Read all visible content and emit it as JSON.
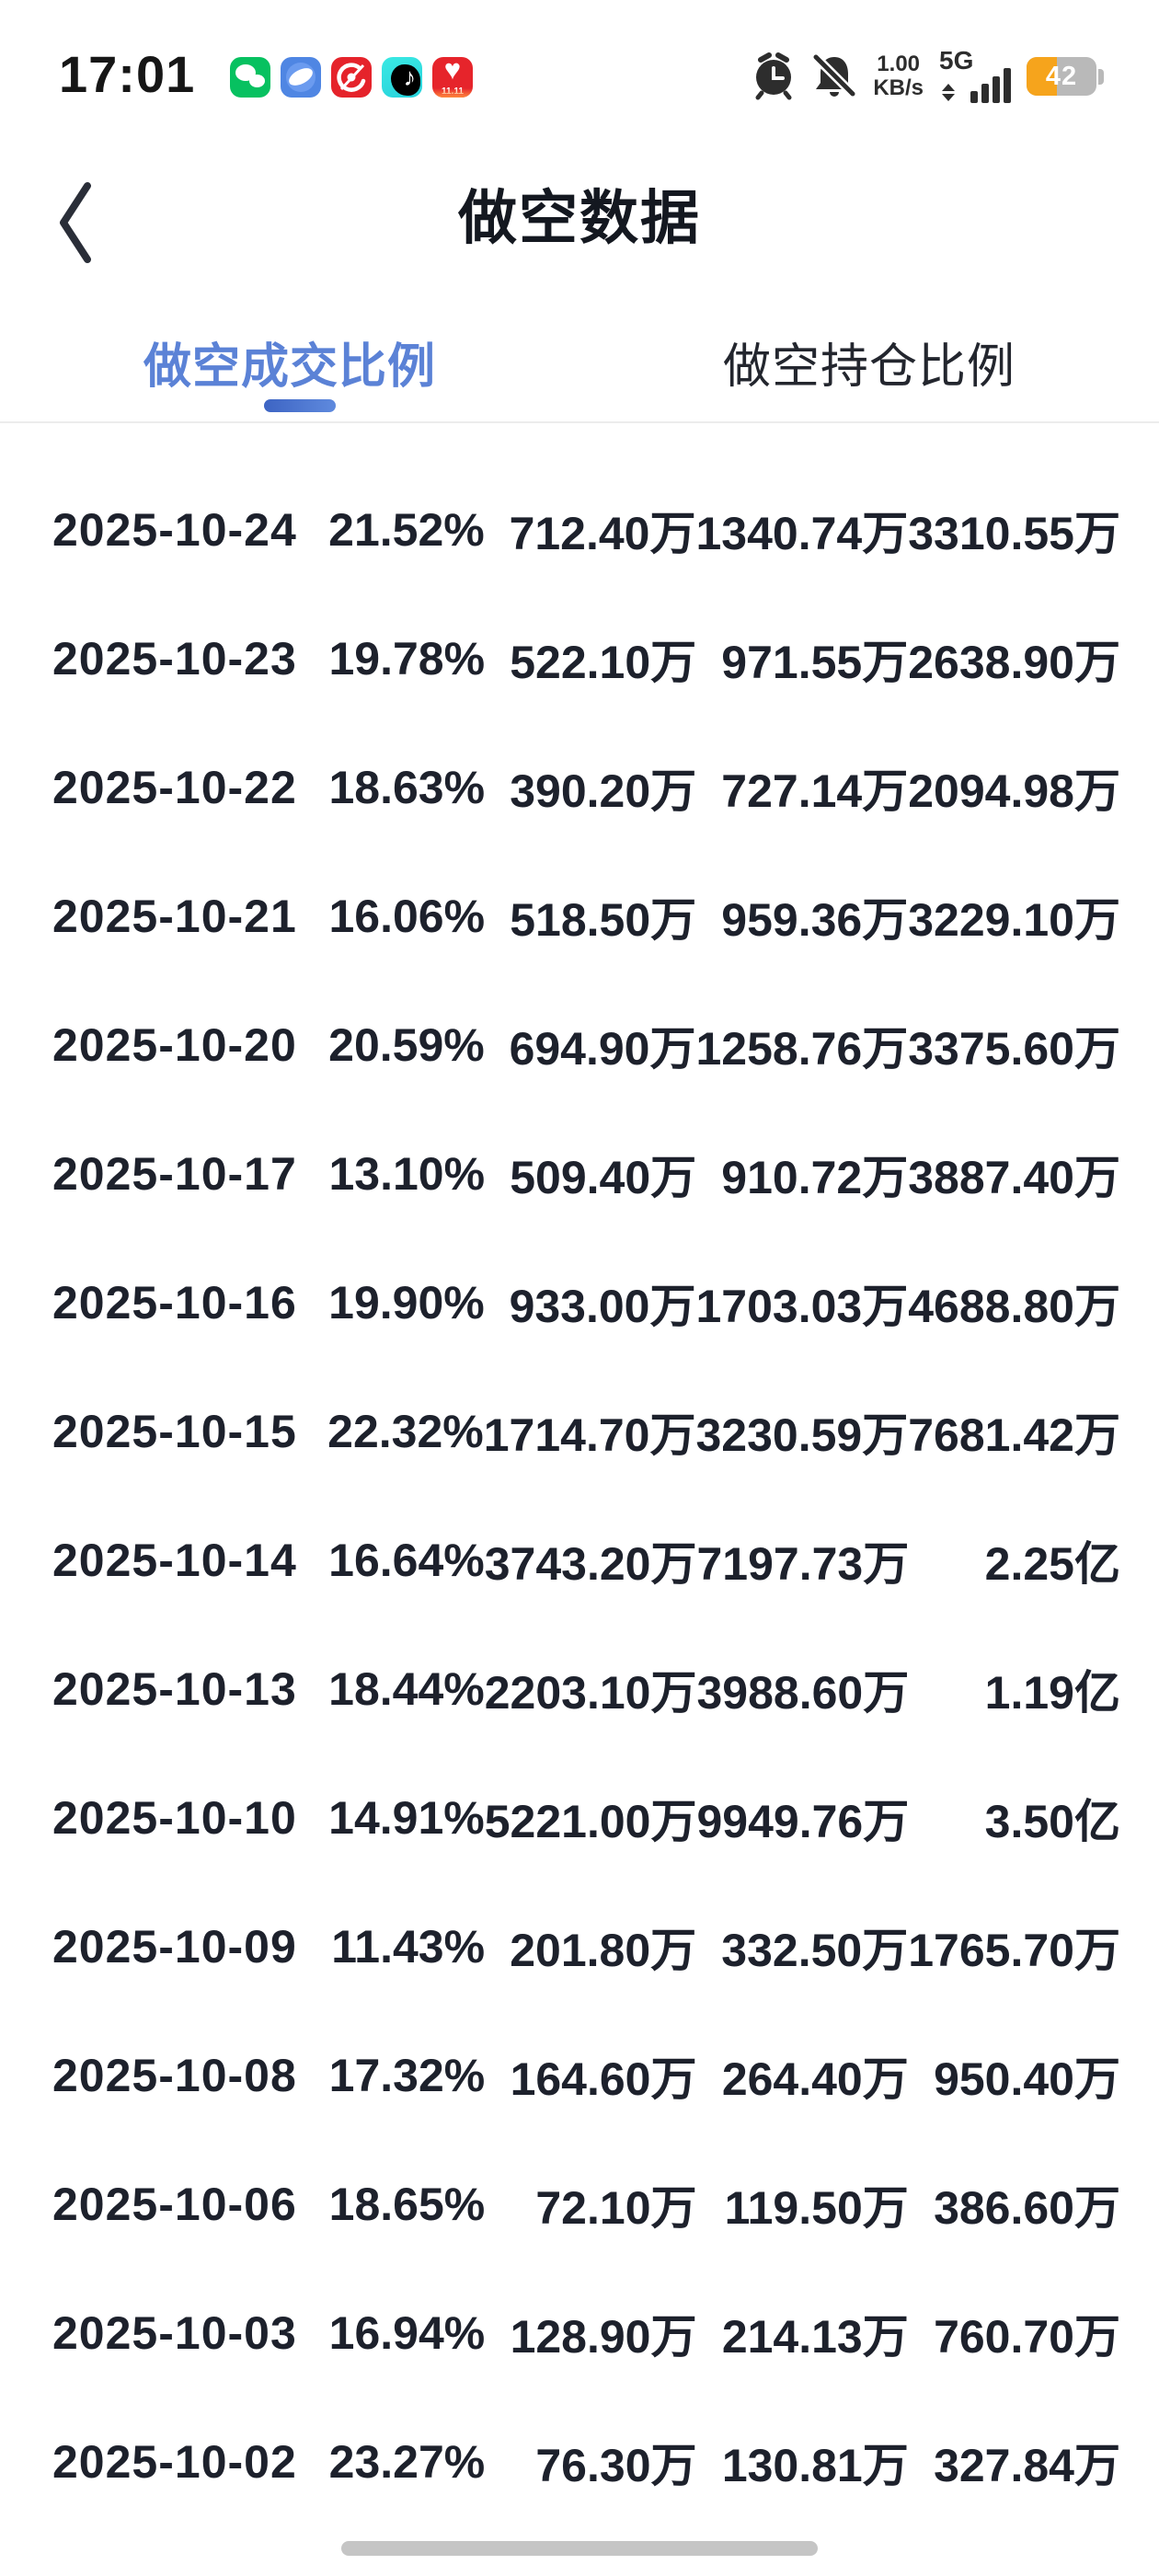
{
  "status_bar": {
    "time": "17:01",
    "network_speed_value": "1.00",
    "network_speed_unit": "KB/s",
    "network_type": "5G",
    "battery_level": "42",
    "app_icons": [
      "wechat",
      "quark-browser",
      "red-swirl-app",
      "douyin",
      "shopping-11-11"
    ],
    "shopping_icon_label": "11.11"
  },
  "icons": {
    "music_note": "♪",
    "heart": "♥"
  },
  "header": {
    "title": "做空数据"
  },
  "tabs": [
    {
      "label": "做空成交比例",
      "active": true
    },
    {
      "label": "做空持仓比例",
      "active": false
    }
  ],
  "colors": {
    "accent_blue": "#5b82d6",
    "tab_underline_gradient": [
      "#3d64c3",
      "#5f8ade"
    ],
    "battery_orange": "#f6a41c",
    "battery_gray": "#b9b9b9",
    "divider_gray": "#ececec",
    "text_dark": "#1d212c",
    "scroll_indicator_gray": "#c5c5c5"
  },
  "table": {
    "rows": [
      [
        "2025-10-24",
        "21.52%",
        "712.40万",
        "1340.74万",
        "3310.55万"
      ],
      [
        "2025-10-23",
        "19.78%",
        "522.10万",
        "971.55万",
        "2638.90万"
      ],
      [
        "2025-10-22",
        "18.63%",
        "390.20万",
        "727.14万",
        "2094.98万"
      ],
      [
        "2025-10-21",
        "16.06%",
        "518.50万",
        "959.36万",
        "3229.10万"
      ],
      [
        "2025-10-20",
        "20.59%",
        "694.90万",
        "1258.76万",
        "3375.60万"
      ],
      [
        "2025-10-17",
        "13.10%",
        "509.40万",
        "910.72万",
        "3887.40万"
      ],
      [
        "2025-10-16",
        "19.90%",
        "933.00万",
        "1703.03万",
        "4688.80万"
      ],
      [
        "2025-10-15",
        "22.32%",
        "1714.70万",
        "3230.59万",
        "7681.42万"
      ],
      [
        "2025-10-14",
        "16.64%",
        "3743.20万",
        "7197.73万",
        "2.25亿"
      ],
      [
        "2025-10-13",
        "18.44%",
        "2203.10万",
        "3988.60万",
        "1.19亿"
      ],
      [
        "2025-10-10",
        "14.91%",
        "5221.00万",
        "9949.76万",
        "3.50亿"
      ],
      [
        "2025-10-09",
        "11.43%",
        "201.80万",
        "332.50万",
        "1765.70万"
      ],
      [
        "2025-10-08",
        "17.32%",
        "164.60万",
        "264.40万",
        "950.40万"
      ],
      [
        "2025-10-06",
        "18.65%",
        "72.10万",
        "119.50万",
        "386.60万"
      ],
      [
        "2025-10-03",
        "16.94%",
        "128.90万",
        "214.13万",
        "760.70万"
      ],
      [
        "2025-10-02",
        "23.27%",
        "76.30万",
        "130.81万",
        "327.84万"
      ]
    ]
  }
}
